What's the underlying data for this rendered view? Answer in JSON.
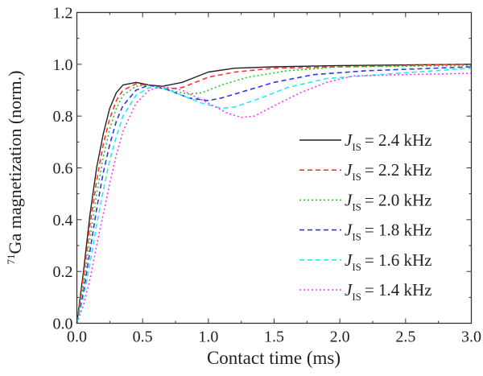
{
  "chart_data": {
    "type": "line",
    "title": "",
    "xlabel": "Contact time (ms)",
    "ylabel_sup": "71",
    "ylabel": "Ga magnetization (norm.)",
    "xlim": [
      0,
      3.0
    ],
    "ylim": [
      0,
      1.2
    ],
    "xticks": [
      "0.0",
      "0.5",
      "1.0",
      "1.5",
      "2.0",
      "2.5",
      "3.0"
    ],
    "yticks": [
      "0.0",
      "0.2",
      "0.4",
      "0.6",
      "0.8",
      "1.0",
      "1.2"
    ],
    "grid": false,
    "legend_position": "center-right",
    "legend_symbol": "J",
    "legend_subscript": "IS",
    "series": [
      {
        "name": "= 2.4 kHz",
        "color": "#222222",
        "dash": "",
        "points": [
          [
            0,
            0
          ],
          [
            0.05,
            0.2
          ],
          [
            0.1,
            0.42
          ],
          [
            0.15,
            0.6
          ],
          [
            0.2,
            0.73
          ],
          [
            0.25,
            0.83
          ],
          [
            0.3,
            0.89
          ],
          [
            0.35,
            0.92
          ],
          [
            0.45,
            0.93
          ],
          [
            0.55,
            0.92
          ],
          [
            0.65,
            0.915
          ],
          [
            0.8,
            0.93
          ],
          [
            0.9,
            0.95
          ],
          [
            1.0,
            0.97
          ],
          [
            1.2,
            0.985
          ],
          [
            1.5,
            0.99
          ],
          [
            2.0,
            0.995
          ],
          [
            3.0,
            1.0
          ]
        ]
      },
      {
        "name": "= 2.2 kHz",
        "color": "#ff3333",
        "dash": "6,4",
        "points": [
          [
            0,
            0
          ],
          [
            0.05,
            0.18
          ],
          [
            0.1,
            0.38
          ],
          [
            0.15,
            0.55
          ],
          [
            0.2,
            0.69
          ],
          [
            0.25,
            0.79
          ],
          [
            0.3,
            0.86
          ],
          [
            0.35,
            0.9
          ],
          [
            0.45,
            0.925
          ],
          [
            0.6,
            0.915
          ],
          [
            0.7,
            0.905
          ],
          [
            0.8,
            0.91
          ],
          [
            0.9,
            0.93
          ],
          [
            1.0,
            0.95
          ],
          [
            1.2,
            0.97
          ],
          [
            1.5,
            0.985
          ],
          [
            2.0,
            0.99
          ],
          [
            3.0,
            1.0
          ]
        ]
      },
      {
        "name": "= 2.0 kHz",
        "color": "#22cc22",
        "dash": "2,3",
        "points": [
          [
            0,
            0
          ],
          [
            0.05,
            0.15
          ],
          [
            0.1,
            0.33
          ],
          [
            0.15,
            0.5
          ],
          [
            0.2,
            0.64
          ],
          [
            0.25,
            0.75
          ],
          [
            0.3,
            0.83
          ],
          [
            0.35,
            0.88
          ],
          [
            0.45,
            0.915
          ],
          [
            0.55,
            0.92
          ],
          [
            0.7,
            0.9
          ],
          [
            0.85,
            0.885
          ],
          [
            0.95,
            0.89
          ],
          [
            1.1,
            0.92
          ],
          [
            1.3,
            0.95
          ],
          [
            1.6,
            0.975
          ],
          [
            2.0,
            0.99
          ],
          [
            3.0,
            0.995
          ]
        ]
      },
      {
        "name": "= 1.8 kHz",
        "color": "#3333ee",
        "dash": "6,4",
        "points": [
          [
            0,
            0
          ],
          [
            0.05,
            0.12
          ],
          [
            0.1,
            0.28
          ],
          [
            0.15,
            0.44
          ],
          [
            0.2,
            0.58
          ],
          [
            0.25,
            0.69
          ],
          [
            0.3,
            0.78
          ],
          [
            0.35,
            0.84
          ],
          [
            0.45,
            0.9
          ],
          [
            0.55,
            0.92
          ],
          [
            0.7,
            0.9
          ],
          [
            0.85,
            0.87
          ],
          [
            1.0,
            0.86
          ],
          [
            1.1,
            0.87
          ],
          [
            1.3,
            0.9
          ],
          [
            1.5,
            0.93
          ],
          [
            1.8,
            0.96
          ],
          [
            2.2,
            0.975
          ],
          [
            3.0,
            0.99
          ]
        ]
      },
      {
        "name": "= 1.6 kHz",
        "color": "#22eeee",
        "dash": "6,4",
        "points": [
          [
            0,
            0
          ],
          [
            0.05,
            0.1
          ],
          [
            0.1,
            0.23
          ],
          [
            0.15,
            0.38
          ],
          [
            0.2,
            0.51
          ],
          [
            0.25,
            0.63
          ],
          [
            0.3,
            0.72
          ],
          [
            0.35,
            0.8
          ],
          [
            0.45,
            0.88
          ],
          [
            0.55,
            0.91
          ],
          [
            0.65,
            0.91
          ],
          [
            0.8,
            0.88
          ],
          [
            0.95,
            0.85
          ],
          [
            1.1,
            0.83
          ],
          [
            1.2,
            0.835
          ],
          [
            1.4,
            0.87
          ],
          [
            1.6,
            0.91
          ],
          [
            1.9,
            0.945
          ],
          [
            2.3,
            0.96
          ],
          [
            3.0,
            0.985
          ]
        ]
      },
      {
        "name": "= 1.4 kHz",
        "color": "#ff33ff",
        "dash": "2,3",
        "points": [
          [
            0,
            0
          ],
          [
            0.05,
            0.07
          ],
          [
            0.1,
            0.17
          ],
          [
            0.15,
            0.3
          ],
          [
            0.2,
            0.42
          ],
          [
            0.25,
            0.54
          ],
          [
            0.3,
            0.65
          ],
          [
            0.35,
            0.74
          ],
          [
            0.45,
            0.85
          ],
          [
            0.55,
            0.9
          ],
          [
            0.65,
            0.915
          ],
          [
            0.8,
            0.9
          ],
          [
            1.0,
            0.85
          ],
          [
            1.15,
            0.81
          ],
          [
            1.25,
            0.795
          ],
          [
            1.35,
            0.8
          ],
          [
            1.5,
            0.84
          ],
          [
            1.7,
            0.89
          ],
          [
            1.9,
            0.93
          ],
          [
            2.1,
            0.955
          ],
          [
            2.5,
            0.96
          ],
          [
            3.0,
            0.965
          ]
        ]
      }
    ]
  }
}
